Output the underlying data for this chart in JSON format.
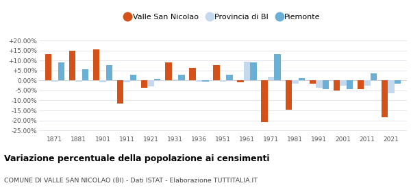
{
  "years": [
    1871,
    1881,
    1901,
    1911,
    1921,
    1931,
    1936,
    1951,
    1961,
    1971,
    1981,
    1991,
    2001,
    2011,
    2021
  ],
  "valle": [
    13.2,
    14.7,
    15.5,
    -11.5,
    -3.5,
    9.2,
    6.3,
    7.8,
    -0.8,
    -20.8,
    -14.5,
    -1.5,
    -5.0,
    -4.5,
    -18.5
  ],
  "provincia": [
    -0.5,
    -0.5,
    -1.0,
    -1.0,
    -3.0,
    0.5,
    -0.5,
    -0.5,
    9.5,
    1.8,
    -1.5,
    -3.5,
    -2.5,
    -2.5,
    -6.5
  ],
  "piemonte": [
    9.0,
    5.5,
    7.5,
    2.8,
    0.7,
    2.8,
    -0.5,
    3.0,
    9.0,
    13.0,
    1.0,
    -4.5,
    -4.5,
    3.5,
    -1.5
  ],
  "valle_color": "#d4521a",
  "provincia_color": "#c5d9ee",
  "piemonte_color": "#6aafd6",
  "title": "Variazione percentuale della popolazione ai censimenti",
  "subtitle": "COMUNE DI VALLE SAN NICOLAO (BI) - Dati ISTAT - Elaborazione TUTTITALIA.IT",
  "ylim": [
    -27,
    22
  ],
  "yticks": [
    -25.0,
    -20.0,
    -15.0,
    -10.0,
    -5.0,
    0.0,
    5.0,
    10.0,
    15.0,
    20.0
  ],
  "ytick_labels": [
    "-25.00%",
    "-20.00%",
    "-15.00%",
    "-10.00%",
    "-5.00%",
    "0.00%",
    "+5.00%",
    "+10.00%",
    "+15.00%",
    "+20.00%"
  ],
  "legend_labels": [
    "Valle San Nicolao",
    "Provincia di BI",
    "Piemonte"
  ],
  "bar_width": 0.27
}
